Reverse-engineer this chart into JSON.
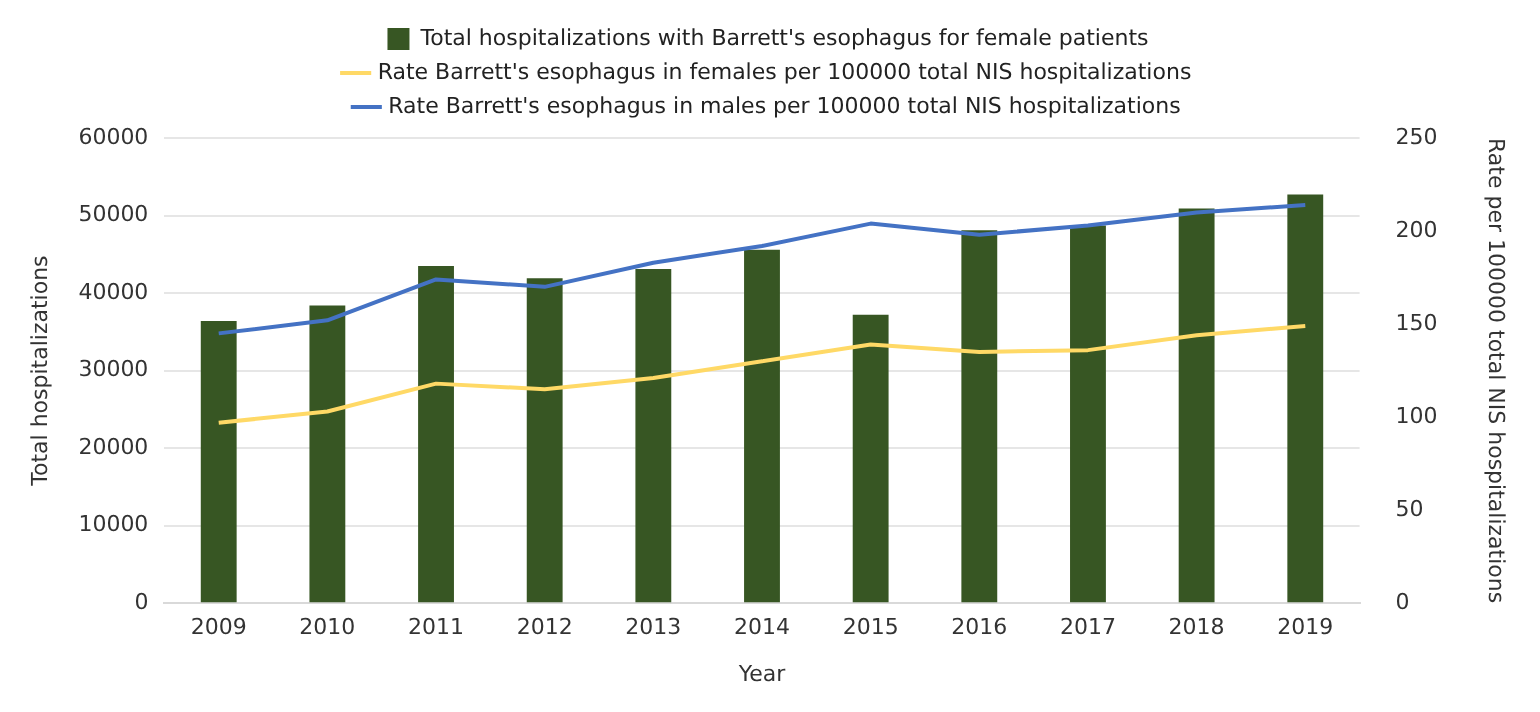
{
  "chart_data": {
    "type": "bar",
    "xlabel": "Year",
    "ylabel": "Total hospitalizations",
    "y2label": "Rate per 100000 total NIS hospitalizations",
    "categories": [
      "2009",
      "2010",
      "2011",
      "2012",
      "2013",
      "2014",
      "2015",
      "2016",
      "2017",
      "2018",
      "2019"
    ],
    "series": [
      {
        "name": "Total hospitalizations with Barrett's esophagus for female patients",
        "color": "#375623",
        "values": [
          36400,
          38400,
          43500,
          41900,
          43100,
          45600,
          37200,
          48100,
          48700,
          50900,
          52700
        ]
      },
      {
        "name": "Rate Barrett's esophagus in females per 100000 total NIS hospitalizations",
        "type": "line",
        "axis": "y2",
        "color": "#ffd966",
        "values": [
          97,
          103,
          118,
          115,
          121,
          130,
          139,
          135,
          136,
          144,
          149
        ]
      },
      {
        "name": "Rate Barrett's esophagus in males per 100000 total NIS hospitalizations",
        "type": "line",
        "axis": "y2",
        "color": "#4472c4",
        "values": [
          145,
          152,
          174,
          170,
          183,
          192,
          204,
          198,
          203,
          210,
          214
        ]
      }
    ],
    "ylim": [
      0,
      60000
    ],
    "yticks": [
      0,
      10000,
      20000,
      30000,
      40000,
      50000,
      60000
    ],
    "y2lim": [
      0,
      250
    ],
    "y2ticks": [
      0,
      50,
      100,
      150,
      200,
      250
    ],
    "grid": "y",
    "legend": "top",
    "marker": "none"
  }
}
